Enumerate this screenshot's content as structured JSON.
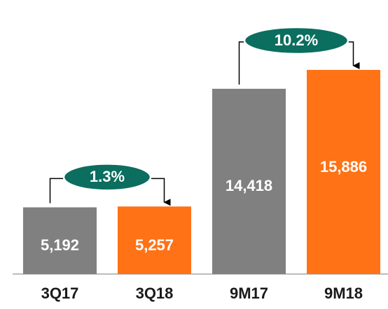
{
  "chart_data": {
    "type": "bar",
    "categories": [
      "3Q17",
      "3Q18",
      "9M17",
      "9M18"
    ],
    "values": [
      5192,
      5257,
      14418,
      15886
    ],
    "value_labels": [
      "5,192",
      "5,257",
      "14,418",
      "15,886"
    ],
    "colors": [
      "#808080",
      "#ff7216",
      "#808080",
      "#ff7216"
    ],
    "annotations": [
      "1.3%",
      "10.2%"
    ]
  }
}
